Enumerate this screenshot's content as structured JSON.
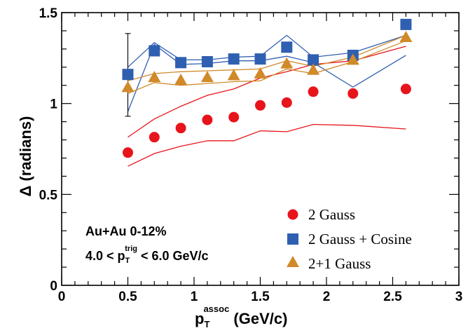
{
  "chart_data": {
    "type": "scatter",
    "xlim": [
      0,
      3
    ],
    "ylim": [
      0,
      1.5
    ],
    "xticks": [
      "0",
      "0.5",
      "1",
      "1.5",
      "2",
      "2.5",
      "3"
    ],
    "yticks": [
      "0",
      "0.5",
      "1",
      "1.5"
    ],
    "xlabel": {
      "base": "p",
      "sub": "T",
      "sup": "assoc",
      "unit": " (GeV/c)"
    },
    "ylabel": "Δ (radians)",
    "grid": false,
    "legend_position": "bottom-right",
    "annotation": {
      "line1": "Au+Au 0-12%",
      "line2_prefix": "4.0 < p",
      "line2_sub": "T",
      "line2_sup": "trig",
      "line2_suffix": " < 6.0 GeV/c"
    },
    "series": [
      {
        "name": "2 Gauss",
        "marker": "circle",
        "color": "#e8141c",
        "x": [
          0.5,
          0.7,
          0.9,
          1.1,
          1.3,
          1.5,
          1.7,
          1.9,
          2.2,
          2.6
        ],
        "y": [
          0.73,
          0.815,
          0.865,
          0.91,
          0.925,
          0.99,
          1.005,
          1.065,
          1.055,
          1.08
        ],
        "band_upper": [
          0.815,
          0.915,
          0.985,
          1.045,
          1.08,
          1.14,
          1.175,
          1.215,
          1.235,
          1.315
        ],
        "band_lower": [
          0.655,
          0.725,
          0.765,
          0.795,
          0.795,
          0.85,
          0.845,
          0.885,
          0.88,
          0.86
        ]
      },
      {
        "name": "2 Gauss + Cosine",
        "marker": "square",
        "color": "#2f5fb0",
        "x": [
          0.5,
          0.7,
          0.9,
          1.1,
          1.3,
          1.5,
          1.7,
          1.9,
          2.2,
          2.6
        ],
        "y": [
          1.16,
          1.29,
          1.225,
          1.23,
          1.245,
          1.245,
          1.31,
          1.24,
          1.265,
          1.435
        ],
        "band_upper": [
          1.2,
          1.335,
          1.24,
          1.24,
          1.255,
          1.26,
          1.375,
          1.255,
          1.28,
          1.375
        ],
        "band_lower": [
          0.955,
          1.325,
          1.215,
          1.22,
          1.235,
          1.235,
          1.26,
          1.225,
          1.09,
          1.265
        ],
        "errorbar": {
          "x": 0.5,
          "low": 0.93,
          "high": 1.385
        }
      },
      {
        "name": "2+1 Gauss",
        "marker": "triangle",
        "color": "#d08a2a",
        "x": [
          0.5,
          0.7,
          0.9,
          1.1,
          1.3,
          1.5,
          1.7,
          1.9,
          2.2,
          2.6
        ],
        "y": [
          1.09,
          1.145,
          1.13,
          1.145,
          1.155,
          1.165,
          1.22,
          1.185,
          1.24,
          1.365
        ],
        "band_upper": [
          1.125,
          1.165,
          1.175,
          1.18,
          1.185,
          1.19,
          1.235,
          1.205,
          1.255,
          1.375
        ],
        "band_lower": [
          1.055,
          1.115,
          1.1,
          1.11,
          1.12,
          1.125,
          1.19,
          1.165,
          1.23,
          1.345
        ]
      }
    ]
  }
}
